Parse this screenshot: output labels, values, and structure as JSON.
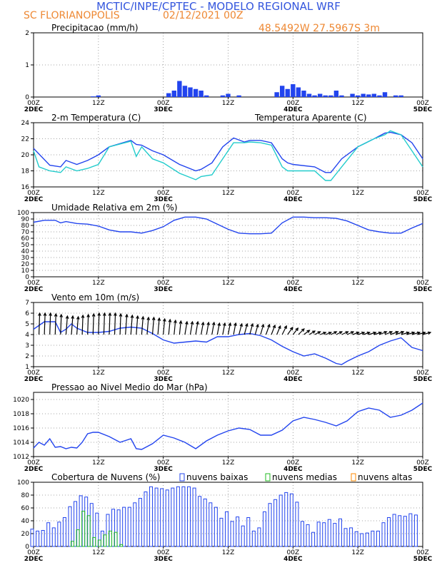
{
  "header": {
    "title": "MCTIC/INPE/CPTEC - MODELO REGIONAL WRF",
    "location": "SC FLORIANOPOLIS",
    "run": "02/12/2021 00Z",
    "coords": "48.5492W 27.5967S 3m"
  },
  "colors": {
    "title": "#3355dd",
    "orange": "#ee8833",
    "blue": "#2244ee",
    "cyan": "#22cccc",
    "green": "#22bb22",
    "orange_alt": "#ff8800"
  },
  "time_labels": [
    {
      "top": "00Z",
      "bottom": "2DEC"
    },
    {
      "top": "12Z",
      "bottom": ""
    },
    {
      "top": "00Z",
      "bottom": "3DEC"
    },
    {
      "top": "12Z",
      "bottom": ""
    },
    {
      "top": "00Z",
      "bottom": "4DEC"
    },
    {
      "top": "12Z",
      "bottom": ""
    },
    {
      "top": "00Z",
      "bottom": "5DEC"
    }
  ],
  "chart_data": [
    {
      "type": "bar",
      "title": "Precipitacao (mm/h)",
      "ylim": [
        0,
        2
      ],
      "yticks": [
        0,
        1,
        2
      ],
      "x_hours": [
        11,
        12,
        25,
        26,
        27,
        28,
        29,
        30,
        31,
        32,
        35,
        36,
        38,
        45,
        46,
        47,
        48,
        49,
        50,
        51,
        52,
        53,
        54,
        55,
        56,
        57,
        59,
        60,
        61,
        62,
        63,
        64,
        65,
        67,
        68
      ],
      "values": [
        0.02,
        0.05,
        0.12,
        0.2,
        0.5,
        0.35,
        0.3,
        0.25,
        0.2,
        0.05,
        0.05,
        0.1,
        0.05,
        0.15,
        0.35,
        0.25,
        0.4,
        0.3,
        0.2,
        0.1,
        0.05,
        0.1,
        0.05,
        0.05,
        0.2,
        0.05,
        0.1,
        0.05,
        0.1,
        0.08,
        0.1,
        0.05,
        0.15,
        0.05,
        0.05
      ]
    },
    {
      "type": "line",
      "title": "2-m Temperatura (C)",
      "subtitle": "Temperatura Aparente (C)",
      "ylim": [
        16,
        24
      ],
      "yticks": [
        16,
        18,
        20,
        22,
        24
      ],
      "series": [
        {
          "name": "2-m Temperatura (C)",
          "color": "blue",
          "x": [
            0,
            3,
            5,
            6,
            8,
            10,
            12,
            14,
            18,
            19,
            20,
            22,
            24,
            27,
            30,
            31,
            33,
            35,
            37,
            39,
            40,
            42,
            44,
            46,
            47,
            48,
            52,
            54,
            55,
            57,
            60,
            63,
            65,
            66,
            68,
            70,
            72
          ],
          "y": [
            20.8,
            18.7,
            18.5,
            19.3,
            18.8,
            19.3,
            20.0,
            21.0,
            21.8,
            21.3,
            21.2,
            20.5,
            20.0,
            18.8,
            18.0,
            18.2,
            19.0,
            21.0,
            22.1,
            21.6,
            21.8,
            21.8,
            21.5,
            19.5,
            19.0,
            18.8,
            18.5,
            17.8,
            17.8,
            19.5,
            21.0,
            22.0,
            22.7,
            22.8,
            22.5,
            21.5,
            19.5
          ]
        },
        {
          "name": "Temperatura Aparente (C)",
          "color": "cyan",
          "x": [
            0,
            1,
            3,
            5,
            6,
            8,
            10,
            12,
            14,
            18,
            19,
            20,
            22,
            24,
            27,
            30,
            31,
            33,
            35,
            37,
            39,
            40,
            42,
            44,
            46,
            47,
            48,
            52,
            54,
            55,
            57,
            60,
            63,
            65,
            66,
            68,
            70,
            72
          ],
          "y": [
            20.5,
            18.5,
            18.0,
            17.8,
            18.5,
            18.0,
            18.3,
            18.8,
            21.0,
            21.7,
            19.8,
            21.0,
            19.5,
            19.0,
            17.7,
            16.9,
            17.3,
            17.5,
            19.5,
            21.5,
            21.5,
            21.6,
            21.5,
            21.2,
            18.5,
            18.0,
            18.0,
            18.0,
            16.8,
            16.8,
            18.5,
            21.0,
            22.0,
            22.5,
            23.0,
            22.5,
            20.5,
            18.5
          ]
        }
      ]
    },
    {
      "type": "line",
      "title": "Umidade Relativa em 2m (%)",
      "ylim": [
        0,
        100
      ],
      "yticks": [
        0,
        10,
        20,
        30,
        40,
        50,
        60,
        70,
        80,
        90,
        100
      ],
      "series": [
        {
          "name": "Umidade Relativa em 2m (%)",
          "color": "blue",
          "x": [
            0,
            2,
            4,
            5,
            6,
            8,
            10,
            12,
            14,
            16,
            18,
            20,
            22,
            24,
            26,
            28,
            30,
            32,
            34,
            36,
            38,
            40,
            42,
            44,
            46,
            48,
            50,
            52,
            54,
            56,
            58,
            60,
            62,
            64,
            66,
            68,
            70,
            72
          ],
          "y": [
            85,
            88,
            88,
            84,
            86,
            83,
            82,
            79,
            73,
            70,
            70,
            68,
            72,
            78,
            88,
            93,
            93,
            90,
            82,
            74,
            68,
            67,
            67,
            68,
            84,
            93,
            93,
            92,
            92,
            91,
            87,
            80,
            73,
            70,
            68,
            68,
            76,
            83
          ]
        }
      ]
    },
    {
      "type": "line",
      "title": "Vento em 10m (m/s)",
      "ylim": [
        1,
        7
      ],
      "yticks": [
        1,
        2,
        3,
        4,
        5,
        6,
        7
      ],
      "series": [
        {
          "name": "Vento em 10m (m/s)",
          "color": "blue",
          "x": [
            0,
            2,
            4,
            5,
            6,
            7,
            8,
            10,
            12,
            14,
            16,
            18,
            20,
            22,
            24,
            26,
            28,
            30,
            32,
            34,
            36,
            38,
            40,
            42,
            44,
            46,
            48,
            50,
            52,
            54,
            56,
            57,
            58,
            60,
            62,
            64,
            66,
            68,
            70,
            72
          ],
          "y": [
            4.5,
            5.2,
            5.2,
            4.2,
            4.5,
            5.0,
            4.6,
            4.2,
            4.2,
            4.3,
            4.6,
            4.7,
            4.6,
            4.1,
            3.5,
            3.2,
            3.3,
            3.4,
            3.3,
            3.8,
            3.8,
            4.0,
            4.1,
            3.9,
            3.5,
            2.9,
            2.4,
            2.0,
            2.2,
            1.8,
            1.3,
            1.2,
            1.5,
            2.0,
            2.4,
            3.0,
            3.4,
            3.7,
            2.8,
            2.5
          ]
        }
      ],
      "barb_from": 1,
      "barb_dx": [
        1,
        1,
        1,
        1,
        1,
        2,
        2,
        2,
        1,
        1,
        1,
        1,
        1,
        1,
        1,
        1,
        2,
        2,
        2,
        2,
        2,
        2,
        2,
        2,
        2,
        2,
        2,
        3,
        3,
        3,
        3,
        3,
        3,
        3,
        3,
        3,
        3,
        4,
        4,
        4,
        4,
        4,
        5,
        5,
        5,
        6,
        7,
        7,
        8,
        8,
        8,
        8,
        8,
        8,
        8,
        8,
        9,
        9,
        9,
        9,
        9,
        10,
        10,
        10,
        10,
        11,
        11,
        11,
        11,
        11,
        11,
        11
      ],
      "barb_dy": [
        30,
        30,
        30,
        29,
        28,
        26,
        26,
        25,
        27,
        28,
        29,
        30,
        30,
        30,
        30,
        29,
        28,
        27,
        26,
        25,
        24,
        24,
        23,
        22,
        21,
        20,
        19,
        18,
        18,
        18,
        17,
        17,
        17,
        16,
        16,
        16,
        16,
        15,
        15,
        15,
        14,
        14,
        14,
        13,
        12,
        12,
        10,
        9,
        8,
        6,
        5,
        4,
        3,
        3,
        4,
        4,
        4,
        4,
        3,
        3,
        3,
        3,
        3,
        4,
        4,
        4,
        4,
        3,
        3,
        3,
        3,
        3
      ]
    },
    {
      "type": "line",
      "title": "Pressao ao Nivel Medio do Mar (hPa)",
      "ylim": [
        1012,
        1021
      ],
      "yticks": [
        1012,
        1014,
        1016,
        1018,
        1020
      ],
      "series": [
        {
          "name": "Pressao ao Nivel Medio do Mar (hPa)",
          "color": "blue",
          "x": [
            0,
            1,
            2,
            3,
            4,
            5,
            6,
            7,
            8,
            9,
            10,
            11,
            12,
            14,
            16,
            18,
            19,
            20,
            22,
            24,
            26,
            28,
            30,
            32,
            34,
            36,
            38,
            40,
            42,
            44,
            46,
            48,
            50,
            52,
            54,
            56,
            58,
            60,
            62,
            64,
            66,
            68,
            70,
            72
          ],
          "y": [
            1013.2,
            1014.0,
            1013.6,
            1014.5,
            1013.3,
            1013.4,
            1013.1,
            1013.3,
            1013.2,
            1014.0,
            1015.2,
            1015.4,
            1015.4,
            1014.8,
            1014.0,
            1014.5,
            1013.1,
            1013.0,
            1013.8,
            1015.0,
            1014.6,
            1014.0,
            1013.1,
            1014.2,
            1015.0,
            1015.6,
            1016.0,
            1015.8,
            1015.0,
            1015.0,
            1015.7,
            1017.0,
            1017.5,
            1017.2,
            1016.8,
            1016.3,
            1017.0,
            1018.3,
            1018.8,
            1018.5,
            1017.5,
            1017.8,
            1018.5,
            1019.5
          ]
        }
      ]
    },
    {
      "type": "bar",
      "title": "Cobertura de Nuvens (%)",
      "legend": [
        "nuvens baixas",
        "nuvens medias",
        "nuvens altas"
      ],
      "ylim": [
        0,
        100
      ],
      "yticks": [
        0,
        20,
        40,
        60,
        80,
        100
      ],
      "x_start": 0,
      "series": [
        {
          "name": "nuvens baixas",
          "color": "blue",
          "values": [
            27,
            24,
            25,
            37,
            29,
            38,
            45,
            62,
            70,
            79,
            77,
            67,
            52,
            24,
            50,
            58,
            57,
            61,
            61,
            68,
            75,
            85,
            93,
            91,
            90,
            88,
            91,
            93,
            93,
            93,
            91,
            78,
            74,
            68,
            61,
            44,
            54,
            39,
            46,
            32,
            45,
            24,
            29,
            54,
            67,
            73,
            80,
            84,
            82,
            69,
            39,
            34,
            22,
            38,
            37,
            42,
            36,
            43,
            28,
            29,
            23,
            20,
            21,
            24,
            24,
            37,
            45,
            50,
            48,
            47,
            51,
            49
          ]
        },
        {
          "name": "nuvens medias",
          "color": "green",
          "values": [
            0,
            0,
            0,
            0,
            0,
            0,
            0,
            8,
            26,
            55,
            48,
            14,
            10,
            18,
            24,
            22,
            3,
            0,
            0,
            0,
            0,
            0,
            0,
            0,
            0,
            0,
            0,
            0,
            0,
            0,
            0,
            0,
            0,
            0,
            0,
            0,
            0,
            0,
            0,
            0,
            0,
            0,
            0,
            0,
            0,
            0,
            0,
            0,
            0,
            0,
            0,
            0,
            0,
            0,
            0,
            0,
            0,
            0,
            0,
            0,
            0,
            0,
            0,
            0,
            0,
            0,
            0,
            0,
            0,
            0,
            0,
            0
          ]
        }
      ]
    }
  ]
}
